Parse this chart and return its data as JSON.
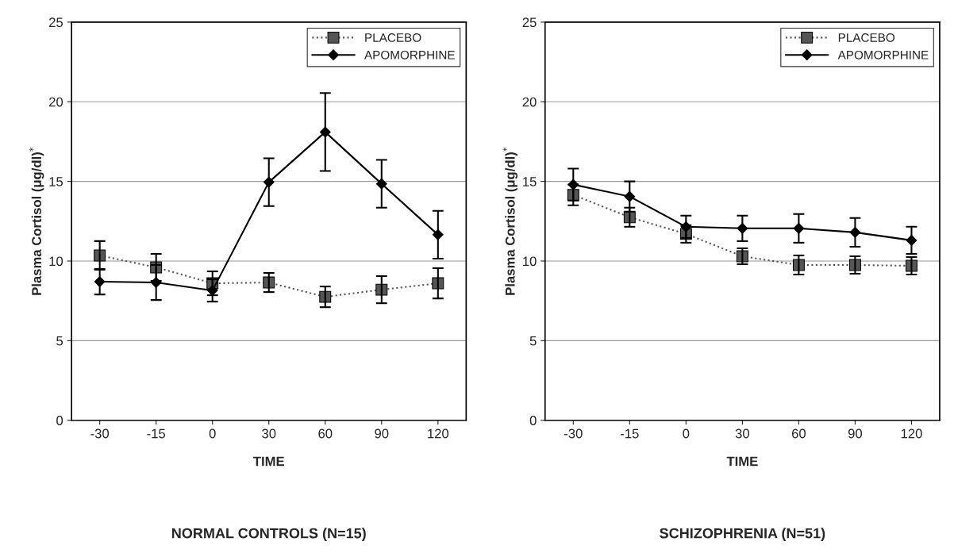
{
  "chart_data": [
    {
      "type": "line",
      "title": "NORMAL CONTROLS (N=15)",
      "xlabel": "TIME",
      "ylabel": "Plasma Cortisol (μg/dl)$^{*}$",
      "categories": [
        "-30",
        "-15",
        "0",
        "30",
        "60",
        "90",
        "120"
      ],
      "series": [
        {
          "name": "PLACEBO",
          "color": "#555555",
          "marker": "square",
          "line_style": "dotted",
          "values": [
            10.35,
            9.6,
            8.6,
            8.65,
            7.75,
            8.2,
            8.6
          ],
          "errors": [
            0.9,
            0.85,
            0.75,
            0.6,
            0.65,
            0.85,
            0.95
          ]
        },
        {
          "name": "APOMORPHINE",
          "color": "#000000",
          "marker": "diamond",
          "line_style": "solid",
          "values": [
            8.7,
            8.65,
            8.15,
            14.95,
            18.1,
            14.85,
            11.65
          ],
          "errors": [
            0.8,
            1.1,
            0.7,
            1.5,
            2.45,
            1.5,
            1.5
          ]
        }
      ],
      "ylim": [
        0,
        25
      ],
      "yticks": [
        0,
        5,
        10,
        15,
        20,
        25
      ],
      "grid": "y",
      "legend": "top right"
    },
    {
      "type": "line",
      "title": "SCHIZOPHRENIA (N=51)",
      "xlabel": "TIME",
      "ylabel": "Plasma Cortisol (μg/dl)$^{*}$",
      "categories": [
        "-30",
        "-15",
        "0",
        "30",
        "60",
        "90",
        "120"
      ],
      "series": [
        {
          "name": "PLACEBO",
          "color": "#555555",
          "marker": "square",
          "line_style": "dotted",
          "values": [
            14.15,
            12.75,
            11.7,
            10.3,
            9.75,
            9.75,
            9.7
          ],
          "errors": [
            0.65,
            0.6,
            0.55,
            0.5,
            0.6,
            0.55,
            0.55
          ]
        },
        {
          "name": "APOMORPHINE",
          "color": "#000000",
          "marker": "diamond",
          "line_style": "solid",
          "values": [
            14.8,
            14.05,
            12.15,
            12.05,
            12.05,
            11.8,
            11.3
          ],
          "errors": [
            1.0,
            0.95,
            0.7,
            0.8,
            0.9,
            0.9,
            0.85
          ]
        }
      ],
      "ylim": [
        0,
        25
      ],
      "yticks": [
        0,
        5,
        10,
        15,
        20,
        25
      ],
      "grid": "y",
      "legend": "top right"
    }
  ]
}
